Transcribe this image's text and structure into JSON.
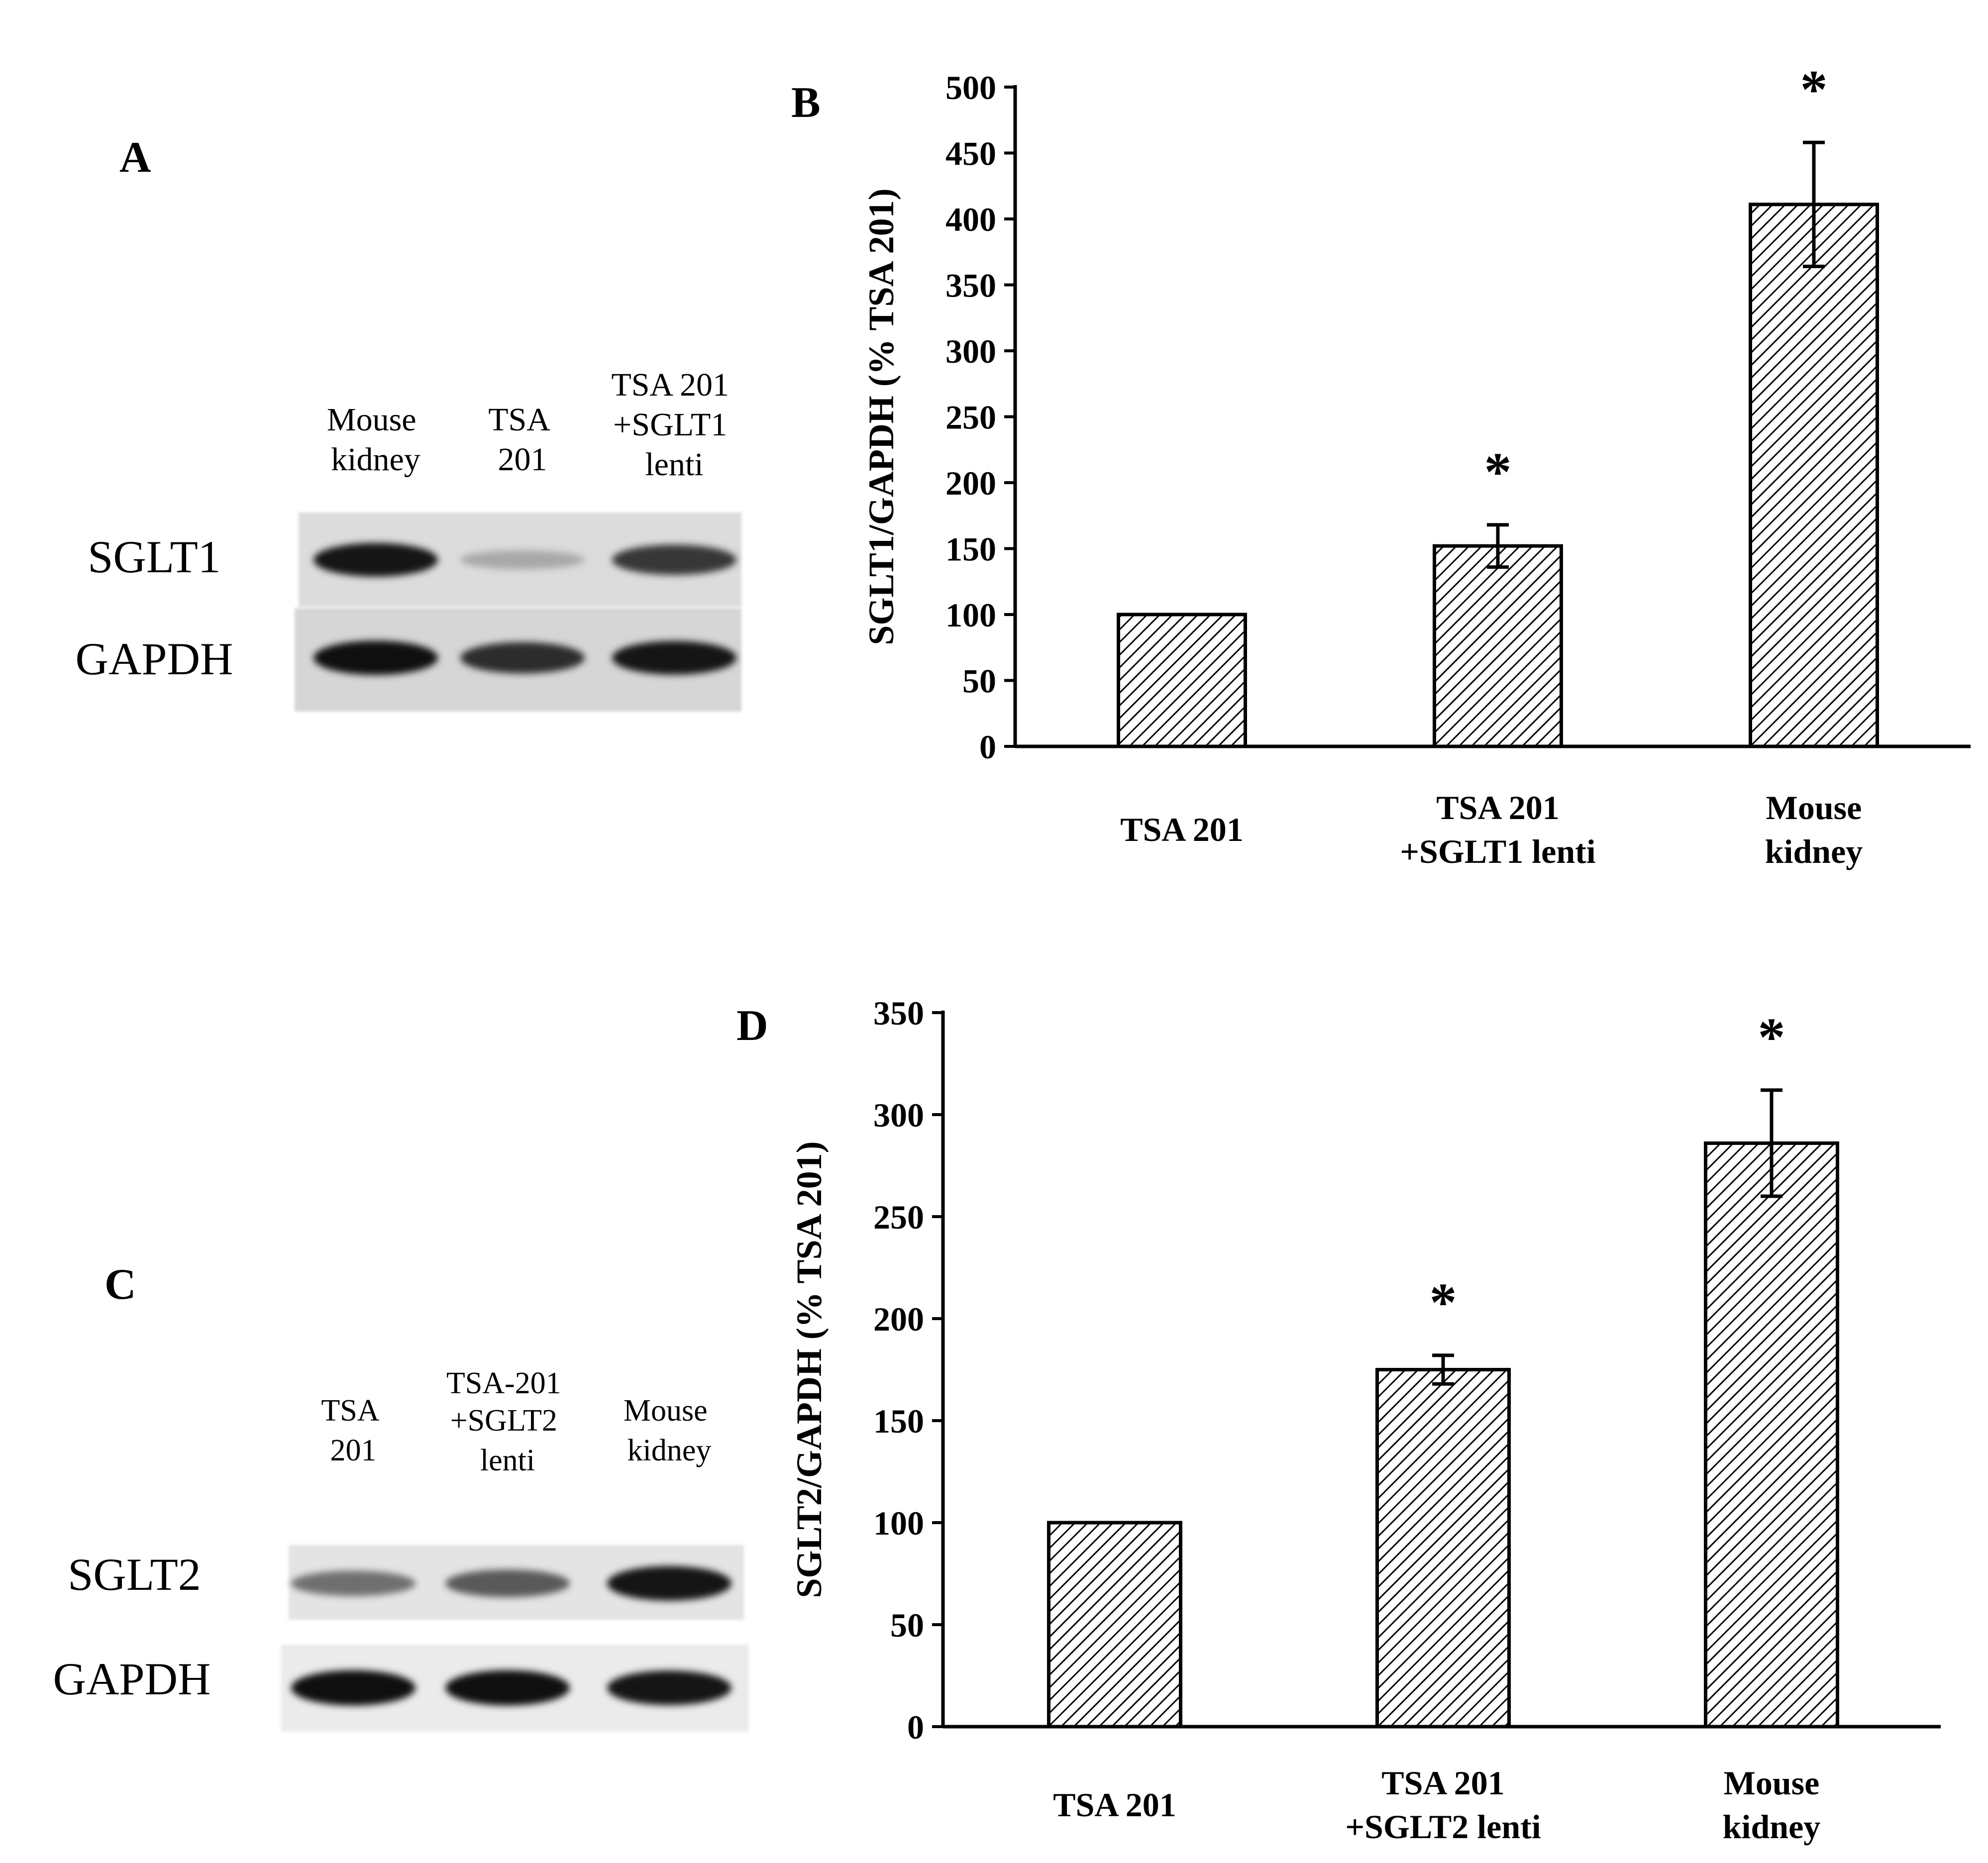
{
  "panels": {
    "a": {
      "letter": "A",
      "lanes": [
        [
          "Mouse",
          "kidney"
        ],
        [
          "TSA",
          "201"
        ],
        [
          "TSA 201",
          "+SGLT1",
          "lenti"
        ]
      ],
      "rows": [
        "SGLT1",
        "GAPDH"
      ],
      "band_intensity": {
        "SGLT1": [
          0.95,
          0.3,
          0.8
        ],
        "GAPDH": [
          0.98,
          0.85,
          0.95
        ]
      }
    },
    "c": {
      "letter": "C",
      "lanes": [
        [
          "TSA",
          "201"
        ],
        [
          "TSA-201",
          "+SGLT2",
          "lenti"
        ],
        [
          "Mouse",
          "kidney"
        ]
      ],
      "rows": [
        "SGLT2",
        "GAPDH"
      ],
      "band_intensity": {
        "SGLT2": [
          0.55,
          0.65,
          0.95
        ],
        "GAPDH": [
          0.98,
          0.98,
          0.95
        ]
      }
    }
  },
  "chart_data": [
    {
      "panel": "B",
      "type": "bar",
      "categories": [
        [
          "TSA 201"
        ],
        [
          "TSA 201",
          "+SGLT1 lenti"
        ],
        [
          "Mouse",
          "kidney"
        ]
      ],
      "series": [
        {
          "values": [
            100,
            152,
            411
          ],
          "error": [
            0,
            16,
            47
          ]
        }
      ],
      "significance": [
        "",
        "*",
        "*"
      ],
      "ylabel": "SGLT1/GAPDH (% TSA 201)",
      "xlabel": "",
      "ylim": [
        0,
        500
      ],
      "yticks": [
        0,
        50,
        100,
        150,
        200,
        250,
        300,
        350,
        400,
        450,
        500
      ],
      "grid": false,
      "bar_fill": "diagonal-hatch"
    },
    {
      "panel": "D",
      "type": "bar",
      "categories": [
        [
          "TSA 201"
        ],
        [
          "TSA 201",
          "+SGLT2 lenti"
        ],
        [
          "Mouse",
          "kidney"
        ]
      ],
      "series": [
        {
          "values": [
            100,
            175,
            286
          ],
          "error": [
            0,
            7,
            26
          ]
        }
      ],
      "significance": [
        "",
        "*",
        "*"
      ],
      "ylabel": "SGLT2/GAPDH (% TSA 201)",
      "xlabel": "",
      "ylim": [
        0,
        350
      ],
      "yticks": [
        0,
        50,
        100,
        150,
        200,
        250,
        300,
        350
      ],
      "grid": false,
      "bar_fill": "diagonal-hatch"
    }
  ]
}
